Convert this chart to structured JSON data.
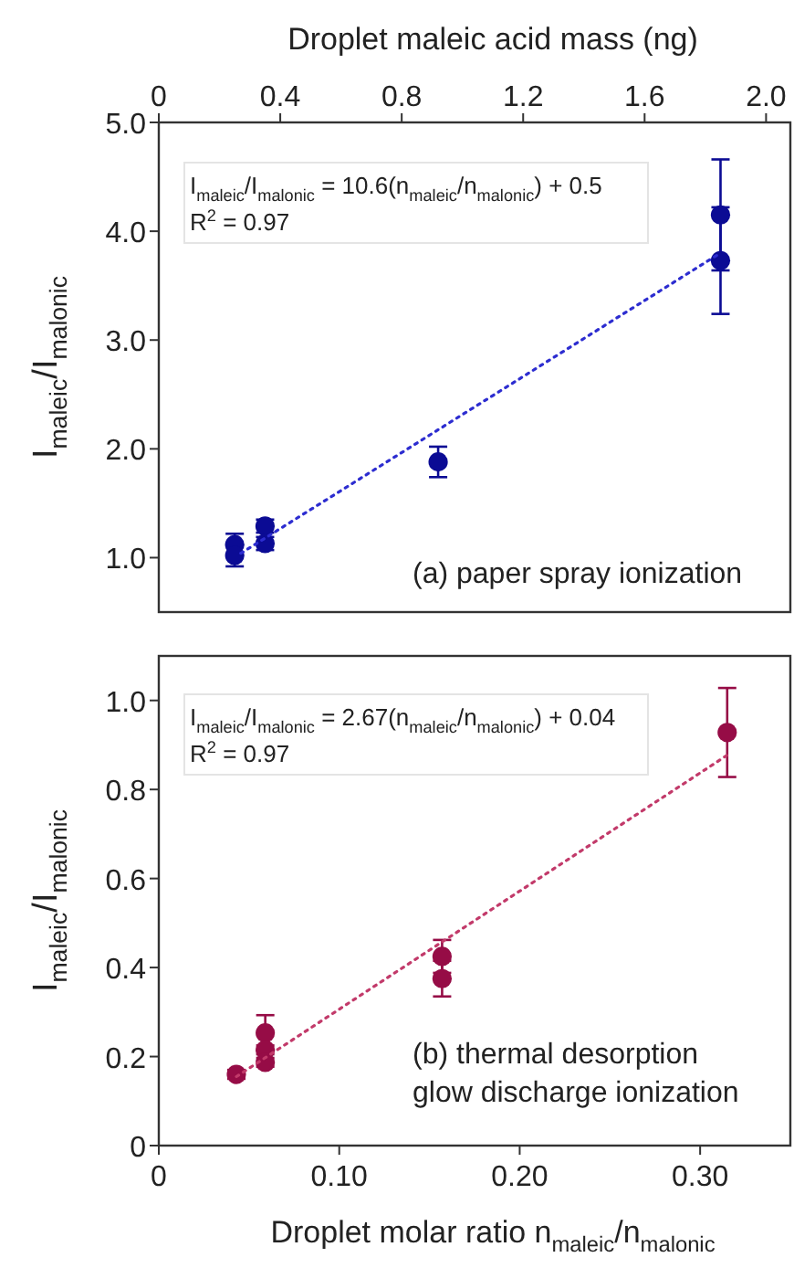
{
  "chart_data": [
    {
      "type": "scatter",
      "xlabel": "Droplet maleic acid mass (ng)",
      "ylabel": "I$_{maleic}$/I$_{malonic}$",
      "xlim": [
        0,
        2.08
      ],
      "xticks": [
        0,
        0.4,
        0.8,
        1.2,
        1.6,
        {
          "value": 2,
          "label": "2.0"
        }
      ],
      "ylim": [
        0.5,
        5.0
      ],
      "yticks": [
        {
          "value": 1,
          "label": "1.0"
        },
        {
          "value": 2,
          "label": "2.0"
        },
        {
          "value": 3,
          "label": "3.0"
        },
        {
          "value": 4,
          "label": "4.0"
        },
        {
          "value": 5,
          "label": "5.0"
        }
      ],
      "grid": false,
      "marker": "circle",
      "annotations": [
        "I$_{maleic}$/I$_{malonic}$ = 10.6(n$_{maleic}$/n$_{malonic}$) + 0.5",
        "R$^{2}$ = 0.97",
        "(a) paper spray ionization"
      ],
      "series": [
        {
          "color": "#0b0b94",
          "x": [
            0.25,
            0.25,
            0.35,
            0.35,
            0.92,
            1.85,
            1.85
          ],
          "values": [
            1.12,
            1.02,
            1.29,
            1.13,
            1.88,
            4.15,
            3.73
          ],
          "errors": [
            0.1,
            0.1,
            0.06,
            0.06,
            0.14,
            0.51,
            0.49
          ]
        },
        {
          "type": "line",
          "color": "#2d2dd0",
          "line_style": "dotted",
          "marker": "none",
          "x": [
            0.27,
            1.85
          ],
          "values": [
            1.04,
            3.8
          ]
        }
      ]
    },
    {
      "type": "scatter",
      "xlabel": "Droplet molar ratio n$_{maleic}$/n$_{malonic}$",
      "ylabel": "I$_{maleic}$/I$_{malonic}$",
      "xlim": [
        0,
        0.35
      ],
      "xticks": [
        0,
        {
          "value": 0.1,
          "label": "0.10"
        },
        {
          "value": 0.2,
          "label": "0.20"
        },
        {
          "value": 0.3,
          "label": "0.30"
        }
      ],
      "ylim": [
        0,
        1.1
      ],
      "yticks": [
        0,
        0.2,
        0.4,
        0.6,
        0.8,
        {
          "value": 1,
          "label": "1.0"
        }
      ],
      "grid": false,
      "marker": "circle",
      "annotations": [
        "I$_{maleic}$/I$_{malonic}$ = 2.67(n$_{maleic}$/n$_{malonic}$) + 0.04",
        "R$^{2}$ = 0.97",
        "(b) thermal desorption\nglow discharge ionization"
      ],
      "series": [
        {
          "color": "#960c46",
          "x": [
            0.043,
            0.059,
            0.059,
            0.059,
            0.157,
            0.157,
            0.315
          ],
          "values": [
            0.16,
            0.253,
            0.215,
            0.187,
            0.425,
            0.375,
            0.928
          ],
          "errors": [
            0.01,
            0.04,
            0.01,
            0.01,
            0.037,
            0.04,
            0.1
          ]
        },
        {
          "type": "line",
          "color": "#c23a6a",
          "line_style": "dotted",
          "marker": "none",
          "x": [
            0.043,
            0.315
          ],
          "values": [
            0.155,
            0.877
          ]
        }
      ]
    }
  ]
}
